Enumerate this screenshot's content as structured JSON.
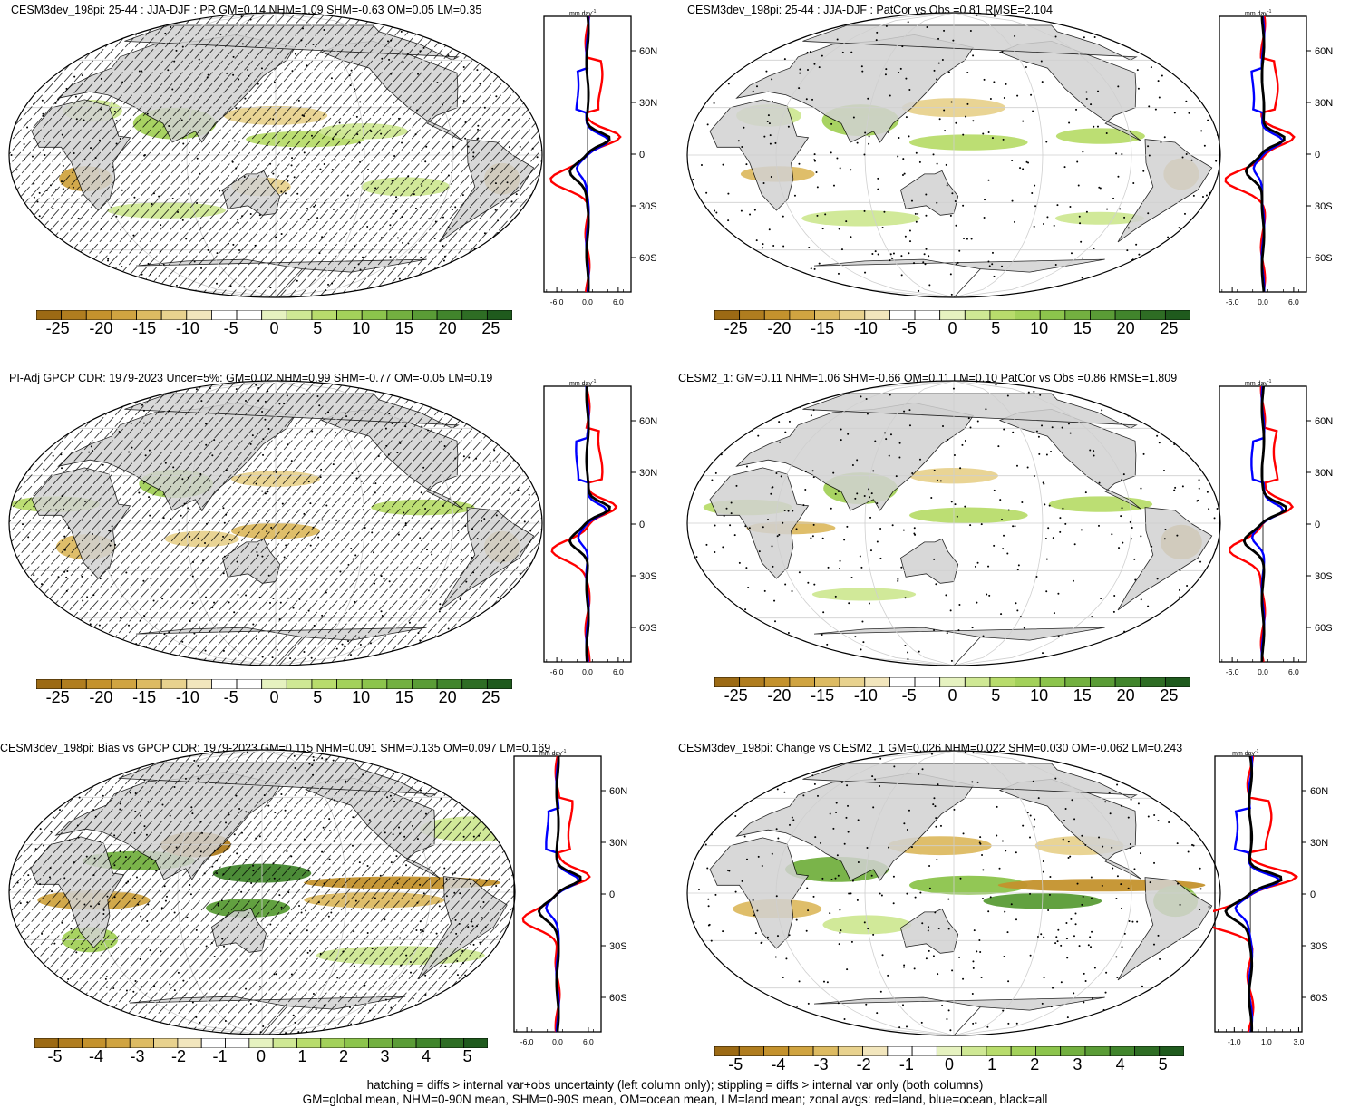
{
  "panels": [
    {
      "id": "p1",
      "title": "CESM3dev_198pi: 25-44 : JJA-DJF : PR GM=0.14 NHM=1.09 SHM=-0.63 OM=0.05 LM=0.35",
      "hatching": true,
      "zonal_unit": "mm day",
      "zonal_unit_sup": "-1",
      "zonal_xticks": [
        "-6.0",
        "0.0",
        "6.0"
      ],
      "lat_ticks": [
        "60N",
        "30N",
        "0",
        "30S",
        "60S"
      ],
      "colorbar_labels": [
        "-25",
        "-20",
        "-15",
        "-10",
        "-5",
        "0",
        "5",
        "10",
        "15",
        "20",
        "25"
      ]
    },
    {
      "id": "p2",
      "title": "CESM3dev_198pi: 25-44 : JJA-DJF : PatCor vs Obs =0.81 RMSE=2.104",
      "hatching": false,
      "zonal_unit": "mm day",
      "zonal_unit_sup": "-1",
      "zonal_xticks": [
        "-6.0",
        "0.0",
        "6.0"
      ],
      "lat_ticks": [
        "60N",
        "30N",
        "0",
        "30S",
        "60S"
      ],
      "colorbar_labels": [
        "-25",
        "-20",
        "-15",
        "-10",
        "-5",
        "0",
        "5",
        "10",
        "15",
        "20",
        "25"
      ]
    },
    {
      "id": "p3",
      "title": "PI-Adj GPCP CDR: 1979-2023 Uncer=5%: GM=0.02 NHM=0.99 SHM=-0.77 OM=-0.05 LM=0.19",
      "hatching": true,
      "zonal_unit": "mm day",
      "zonal_unit_sup": "-1",
      "zonal_xticks": [
        "-6.0",
        "0.0",
        "6.0"
      ],
      "lat_ticks": [
        "60N",
        "30N",
        "0",
        "30S",
        "60S"
      ],
      "colorbar_labels": [
        "-25",
        "-20",
        "-15",
        "-10",
        "-5",
        "0",
        "5",
        "10",
        "15",
        "20",
        "25"
      ]
    },
    {
      "id": "p4",
      "title": "CESM2_1: GM=0.11 NHM=1.06 SHM=-0.66 OM=0.11 LM=0.10 PatCor vs Obs =0.86 RMSE=1.809",
      "hatching": false,
      "zonal_unit": "mm day",
      "zonal_unit_sup": "-1",
      "zonal_xticks": [
        "-6.0",
        "0.0",
        "6.0"
      ],
      "lat_ticks": [
        "60N",
        "30N",
        "0",
        "30S",
        "60S"
      ],
      "colorbar_labels": [
        "-25",
        "-20",
        "-15",
        "-10",
        "-5",
        "0",
        "5",
        "10",
        "15",
        "20",
        "25"
      ]
    },
    {
      "id": "p5",
      "title": "CESM3dev_198pi: Bias vs GPCP CDR: 1979-2023 GM=0.115 NHM=0.091 SHM=0.135 OM=0.097 LM=0.169",
      "hatching": true,
      "zonal_unit": "mm day",
      "zonal_unit_sup": "-1",
      "zonal_xticks": [
        "-6.0",
        "0.0",
        "6.0"
      ],
      "lat_ticks": [
        "60N",
        "30N",
        "0",
        "30S",
        "60S"
      ],
      "colorbar_labels": [
        "-5",
        "-4",
        "-3",
        "-2",
        "-1",
        "0",
        "1",
        "2",
        "3",
        "4",
        "5"
      ]
    },
    {
      "id": "p6",
      "title": "CESM3dev_198pi: Change vs CESM2_1 GM=0.026 NHM=0.022 SHM=0.030 OM=-0.062 LM=0.243",
      "hatching": false,
      "zonal_unit": "mm day",
      "zonal_unit_sup": "-1",
      "zonal_xticks": [
        "-1.0",
        "1.0",
        "3.0"
      ],
      "lat_ticks": [
        "60N",
        "30N",
        "0",
        "30S",
        "60S"
      ],
      "colorbar_labels": [
        "-5",
        "-4",
        "-3",
        "-2",
        "-1",
        "0",
        "1",
        "2",
        "3",
        "4",
        "5"
      ]
    }
  ],
  "colors": {
    "colorbar": [
      "#9c6a14",
      "#b07d1f",
      "#c4922d",
      "#d0a441",
      "#ddbb62",
      "#e8d28e",
      "#f2e6bd",
      "#ffffff",
      "#ffffff",
      "#e6f2c0",
      "#cfe894",
      "#b8dc6c",
      "#a3d15a",
      "#8cc44c",
      "#73b040",
      "#5a9c36",
      "#41852c",
      "#2e6d24",
      "#1f5a1d"
    ],
    "land": "#d2d2d2",
    "zonal_land": "#ff0000",
    "zonal_ocean": "#0000ff",
    "zonal_all": "#000000"
  },
  "footer": {
    "line1": "hatching = diffs > internal var+obs uncertainty (left column only); stippling = diffs > internal var only (both columns)",
    "line2": "GM=global mean, NHM=0-90N mean, SHM=0-90S mean, OM=ocean mean, LM=land mean; zonal avgs: red=land, blue=ocean, black=all"
  }
}
